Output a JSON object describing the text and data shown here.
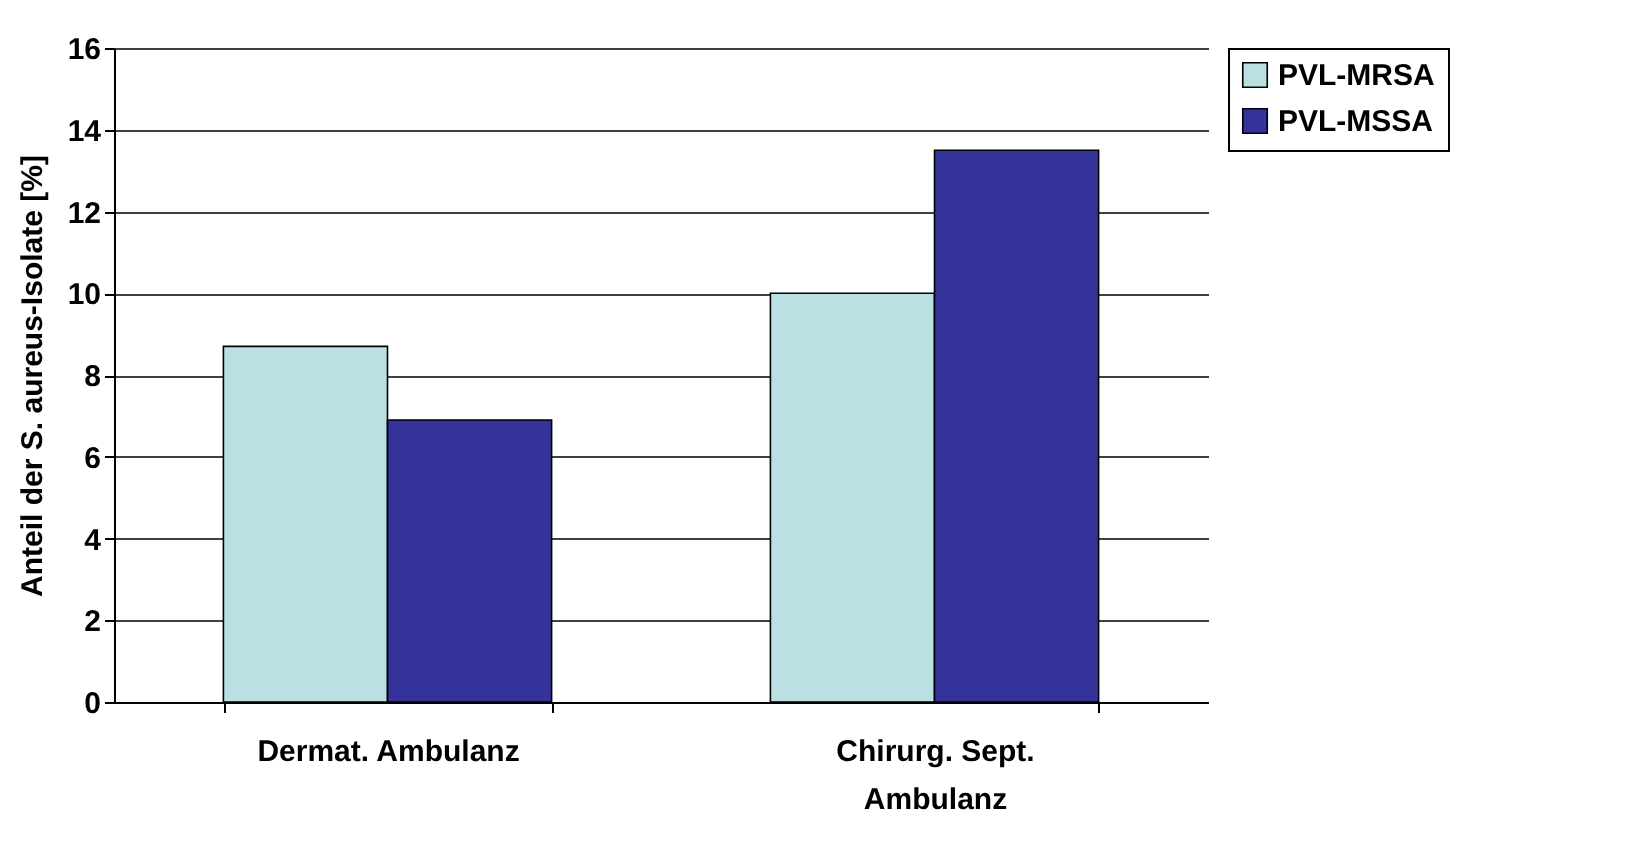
{
  "chart_data": {
    "type": "bar",
    "ylabel": "Anteil der S. aureus-Isolate [%]",
    "categories": [
      "Dermat. Ambulanz",
      "Chirurg. Sept. Ambulanz"
    ],
    "series": [
      {
        "name": "PVL-MRSA",
        "color": "#bbe0e3",
        "values": [
          8.7,
          10.0
        ]
      },
      {
        "name": "PVL-MSSA",
        "color": "#333399",
        "values": [
          6.9,
          13.5
        ]
      }
    ],
    "ylim": [
      0,
      16
    ],
    "yticks": [
      0,
      2,
      4,
      6,
      8,
      10,
      12,
      14,
      16
    ],
    "grid": "y",
    "legend": "right"
  }
}
